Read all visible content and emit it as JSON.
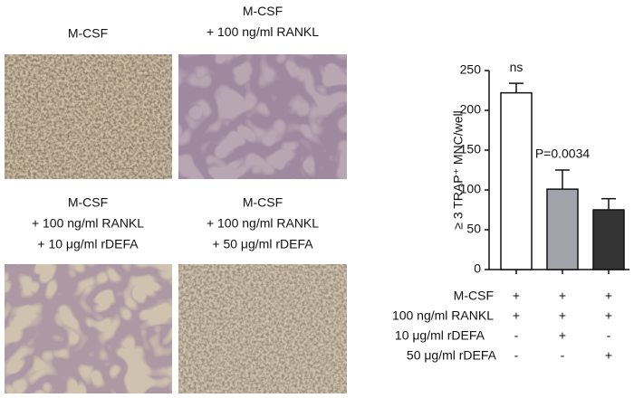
{
  "panels": [
    {
      "lines": [
        "M-CSF"
      ]
    },
    {
      "lines": [
        "M-CSF",
        "+ 100 ng/ml RANKL"
      ]
    },
    {
      "lines": [
        "M-CSF",
        "+ 100 ng/ml RANKL",
        "+ 10 μg/ml rDEFA"
      ]
    },
    {
      "lines": [
        "M-CSF",
        "+ 100 ng/ml RANKL",
        "+ 50 μg/ml rDEFA"
      ]
    }
  ],
  "chart_data": {
    "type": "bar",
    "ylabel": "≥ 3 TRAP⁺ MNC/well",
    "categories": [
      null,
      null,
      null
    ],
    "values": [
      222,
      101,
      75
    ],
    "errors": [
      12,
      24,
      14
    ],
    "colors": [
      "#ffffff",
      "#a3a3ab",
      "#333333"
    ],
    "annotations": [
      "ns",
      "P=0.0034",
      null
    ],
    "ylim": [
      0,
      250
    ],
    "yticks": [
      0,
      50,
      100,
      150,
      200,
      250
    ]
  },
  "treatments": [
    {
      "label": "M-CSF",
      "marks": [
        "+",
        "+",
        "+"
      ]
    },
    {
      "label": "100 ng/ml RANKL",
      "marks": [
        "+",
        "+",
        "+"
      ]
    },
    {
      "label": "10 μg/ml rDEFA",
      "marks": [
        "-",
        "+",
        "-"
      ]
    },
    {
      "label": "50 μg/ml rDEFA",
      "marks": [
        "-",
        "-",
        "+"
      ]
    }
  ]
}
